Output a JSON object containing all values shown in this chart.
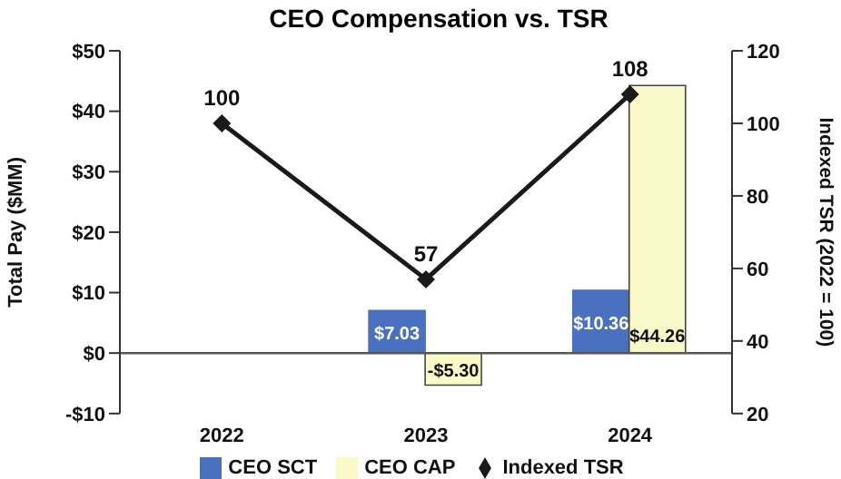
{
  "chart_data": {
    "type": "bar",
    "title": "CEO Compensation vs. TSR",
    "ylabel": "Total Pay ($MM)",
    "y2label": "Indexed TSR (2022 = 100)",
    "categories": [
      "2022",
      "2023",
      "2024"
    ],
    "series": [
      {
        "name": "CEO SCT",
        "color": "#4a70c0",
        "values": [
          null,
          7.03,
          10.36
        ],
        "value_labels": [
          null,
          "$7.03",
          "$10.36"
        ]
      },
      {
        "name": "CEO CAP",
        "color": "#fafac8",
        "values": [
          null,
          -5.3,
          44.26
        ],
        "value_labels": [
          null,
          "-$5.30",
          "$44.26"
        ]
      },
      {
        "name": "Indexed TSR",
        "type": "line",
        "axis": "y2",
        "color": "#1a1a1a",
        "values": [
          100,
          57,
          108
        ],
        "value_labels": [
          "100",
          "57",
          "108"
        ]
      }
    ],
    "ylim": [
      -10,
      50
    ],
    "yticks": [
      {
        "value": -10,
        "label": "-$10"
      },
      {
        "value": 0,
        "label": "$0"
      },
      {
        "value": 10,
        "label": "$10"
      },
      {
        "value": 20,
        "label": "$20"
      },
      {
        "value": 30,
        "label": "$30"
      },
      {
        "value": 40,
        "label": "$40"
      },
      {
        "value": 50,
        "label": "$50"
      }
    ],
    "y2lim": [
      20,
      120
    ],
    "y2ticks": [
      20,
      40,
      60,
      80,
      100,
      120
    ],
    "ref_lines": [
      {
        "axis": "y",
        "value": 0,
        "color": "#555555"
      }
    ],
    "marker": "diamond",
    "legend": "bottom",
    "grid": false
  }
}
